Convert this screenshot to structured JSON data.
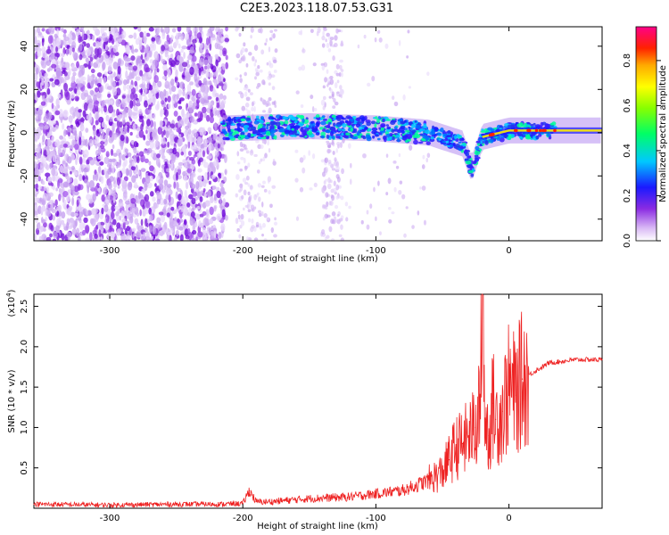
{
  "title": "C2E3.2023.118.07.53.G31",
  "chart_data": [
    {
      "type": "heatmap",
      "xlabel": "Height of straight line (km)",
      "ylabel": "Frequency (Hz)",
      "xlim": [
        -357,
        70
      ],
      "ylim": [
        -50,
        49
      ],
      "xticks": [
        -300,
        -200,
        -100,
        0
      ],
      "yticks": [
        -40,
        -20,
        0,
        20,
        40
      ],
      "colorbar": {
        "label": "Normalized spectral amplitude",
        "range": [
          0.0,
          0.95
        ],
        "ticks": [
          "0.0",
          "0.2",
          "0.4",
          "0.6",
          "0.8"
        ],
        "tick_values": [
          0.0,
          0.2,
          0.4,
          0.6,
          0.8
        ]
      },
      "main_trace_frequency": [
        {
          "x": -215,
          "y": 2
        },
        {
          "x": -150,
          "y": 3
        },
        {
          "x": -100,
          "y": 2
        },
        {
          "x": -60,
          "y": 0
        },
        {
          "x": -35,
          "y": -5
        },
        {
          "x": -28,
          "y": -17
        },
        {
          "x": -20,
          "y": -2
        },
        {
          "x": 0,
          "y": 1
        },
        {
          "x": 70,
          "y": 1
        }
      ]
    },
    {
      "type": "line",
      "xlabel": "Height of straight line (km)",
      "ylabel": "SNR (10 * v/v)",
      "yscale_label": "(x10",
      "yscale_exp": "4",
      "xlim": [
        -357,
        70
      ],
      "ylim": [
        0.0,
        2.65
      ],
      "xticks": [
        -300,
        -200,
        -100,
        0
      ],
      "yticks": [
        0.5,
        1.0,
        1.5,
        2.0,
        2.5
      ],
      "ytick_labels": [
        "0.5",
        "1.0",
        "1.5",
        "2.0",
        "2.5"
      ],
      "series": [
        {
          "color": "#ee2222",
          "x": [
            -357,
            -300,
            -250,
            -215,
            -200,
            -195,
            -190,
            -180,
            -150,
            -120,
            -100,
            -80,
            -70,
            -60,
            -50,
            -45,
            -40,
            -35,
            -30,
            -25,
            -22,
            -20,
            -18,
            -15,
            -12,
            -10,
            -5,
            0,
            5,
            10,
            20,
            30,
            40,
            50,
            60,
            70
          ],
          "y": [
            0.05,
            0.04,
            0.05,
            0.05,
            0.06,
            0.22,
            0.08,
            0.08,
            0.12,
            0.14,
            0.18,
            0.22,
            0.28,
            0.35,
            0.45,
            0.6,
            0.75,
            0.8,
            0.9,
            1.0,
            1.2,
            2.65,
            1.1,
            0.9,
            1.3,
            1.1,
            1.2,
            1.5,
            1.4,
            1.6,
            1.7,
            1.8,
            1.82,
            1.84,
            1.84,
            1.84
          ]
        }
      ]
    }
  ]
}
